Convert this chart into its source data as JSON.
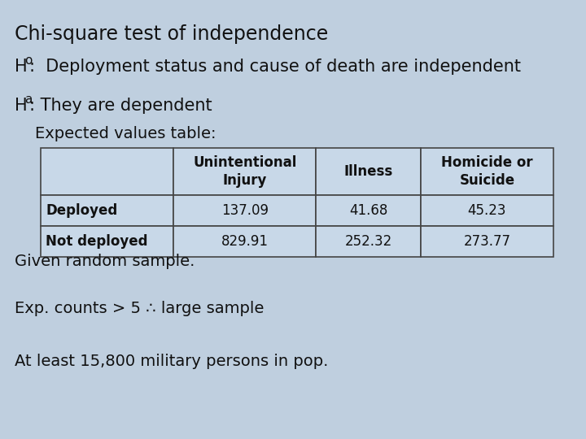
{
  "title": "Chi-square test of independence",
  "h0_main": "H",
  "h0_sub": "o",
  "h0_rest": ":  Deployment status and cause of death are independent",
  "ha_main": "H",
  "ha_sub": "a",
  "ha_rest": ": They are dependent",
  "table_label": "    Expected values table:",
  "col_headers": [
    "",
    "Unintentional\nInjury",
    "Illness",
    "Homicide or\nSuicide"
  ],
  "row_labels": [
    "Deployed",
    "Not deployed"
  ],
  "table_data": [
    [
      "137.09",
      "41.68",
      "45.23"
    ],
    [
      "829.91",
      "252.32",
      "273.77"
    ]
  ],
  "footnotes": [
    "Given random sample.",
    "Exp. counts > 5 ∴ large sample",
    "At least 15,800 military persons in pop."
  ],
  "bg_color": "#bfcfdf",
  "text_color": "#111111",
  "table_bg": "#c8d8e8",
  "table_border": "#444444",
  "title_fontsize": 17,
  "body_fontsize": 15,
  "table_fontsize": 12,
  "footnote_fontsize": 14
}
